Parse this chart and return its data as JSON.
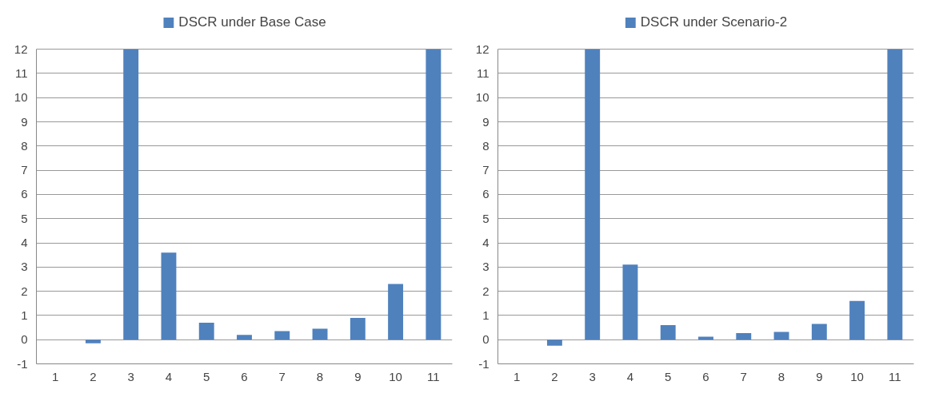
{
  "chart_data": [
    {
      "type": "bar",
      "categories": [
        "1",
        "2",
        "3",
        "4",
        "5",
        "6",
        "7",
        "8",
        "9",
        "10",
        "11"
      ],
      "series": [
        {
          "name": "DSCR under Base Case",
          "color": "#4f81bd",
          "values": [
            null,
            -0.15,
            12,
            3.6,
            0.7,
            0.2,
            0.35,
            0.45,
            0.9,
            2.3,
            12
          ]
        }
      ],
      "ylim": [
        -1,
        12
      ],
      "yticks": [
        -1,
        0,
        1,
        2,
        3,
        4,
        5,
        6,
        7,
        8,
        9,
        10,
        11,
        12
      ],
      "grid": "y",
      "legend": "top"
    },
    {
      "type": "bar",
      "categories": [
        "1",
        "2",
        "3",
        "4",
        "5",
        "6",
        "7",
        "8",
        "9",
        "10",
        "11"
      ],
      "series": [
        {
          "name": "DSCR under Scenario-2",
          "color": "#4f81bd",
          "values": [
            null,
            -0.25,
            12,
            3.1,
            0.6,
            0.12,
            0.27,
            0.32,
            0.65,
            1.6,
            12
          ]
        }
      ],
      "ylim": [
        -1,
        12
      ],
      "yticks": [
        -1,
        0,
        1,
        2,
        3,
        4,
        5,
        6,
        7,
        8,
        9,
        10,
        11,
        12
      ],
      "grid": "y",
      "legend": "top"
    }
  ]
}
